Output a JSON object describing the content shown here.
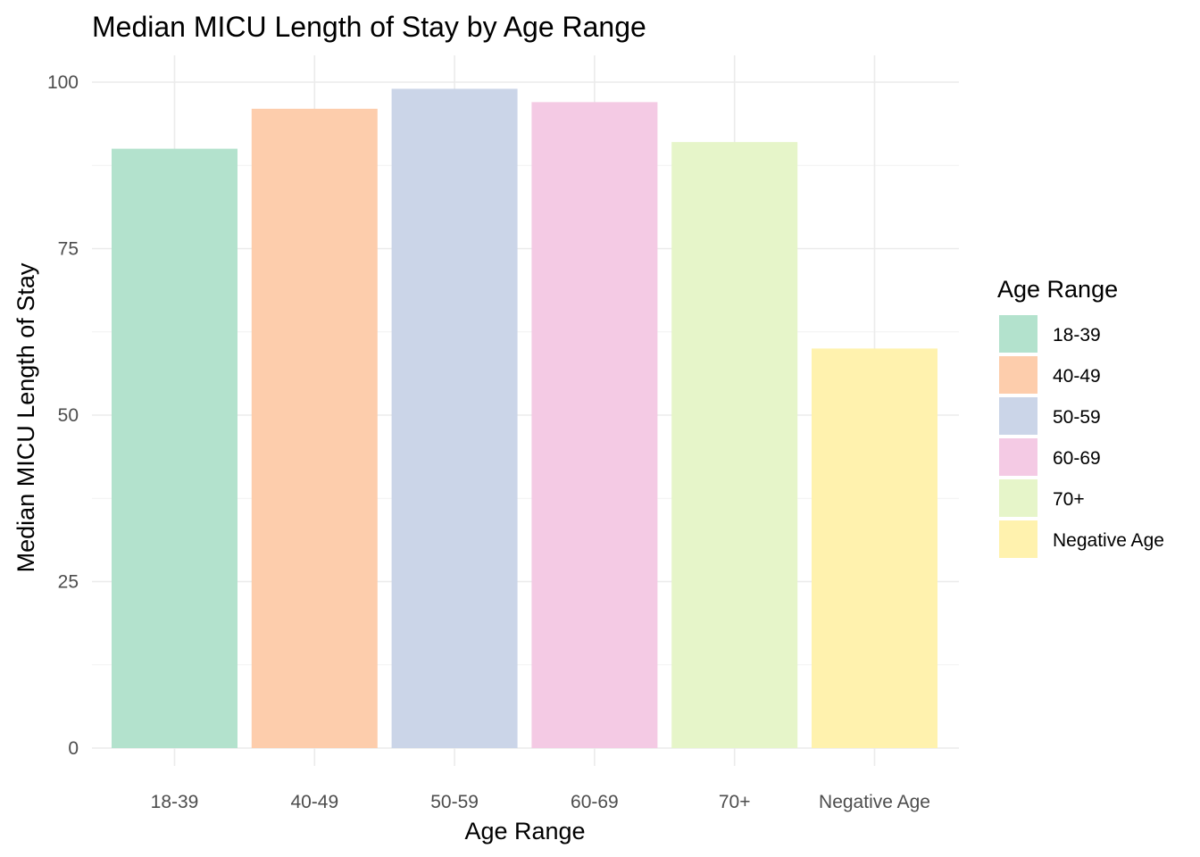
{
  "chart_data": {
    "type": "bar",
    "title": "Median MICU Length of Stay by Age Range",
    "xlabel": "Age Range",
    "ylabel": "Median MICU Length of Stay",
    "categories": [
      "18-39",
      "40-49",
      "50-59",
      "60-69",
      "70+",
      "Negative Age"
    ],
    "values": [
      90,
      96,
      99,
      97,
      91,
      60
    ],
    "colors": [
      "#B3E2CD",
      "#FDCDAC",
      "#CBD5E8",
      "#F4CAE4",
      "#E6F5C9",
      "#FFF2AE"
    ],
    "ylim": [
      0,
      100
    ],
    "yticks": [
      0,
      25,
      50,
      75,
      100
    ],
    "grid": true,
    "legend": {
      "title": "Age Range",
      "position": "right",
      "entries": [
        "18-39",
        "40-49",
        "50-59",
        "60-69",
        "70+",
        "Negative Age"
      ]
    }
  }
}
